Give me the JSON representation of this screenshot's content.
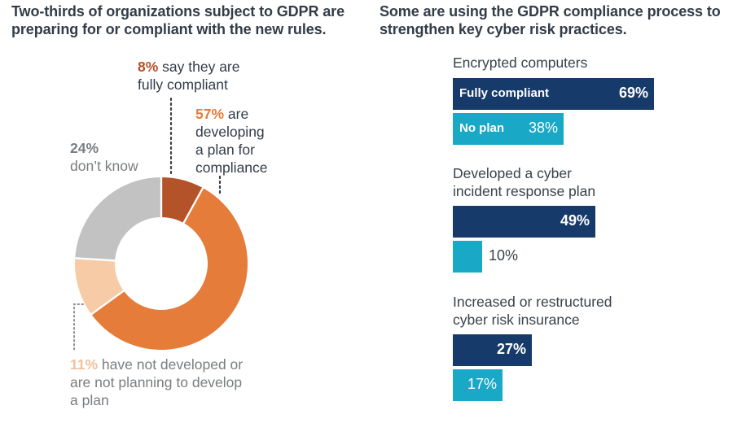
{
  "left_title": "Two-thirds of organizations subject to GDPR are preparing for or compliant with the new rules.",
  "right_title": "Some are using the GDPR compliance process to strengthen key cyber risk practices.",
  "annotations": {
    "compliant": {
      "pct": "8%",
      "text": " say they are",
      "text2": "fully compliant"
    },
    "developing": {
      "pct": "57%",
      "text": " are",
      "text2": "developing",
      "text3": "a plan for",
      "text4": "compliance"
    },
    "dontknow": {
      "pct": "24%",
      "text2": "don’t know"
    },
    "notdev": {
      "pct": "11%",
      "text": " have not developed or",
      "text2": "are not planning to develop",
      "text3": "a plan"
    }
  },
  "chart_data": [
    {
      "type": "pie",
      "title": "Two-thirds of organizations subject to GDPR are preparing for or compliant with the new rules.",
      "donut": true,
      "start": "top",
      "direction": "clockwise",
      "slices": [
        {
          "label": "Fully compliant",
          "value": 8,
          "color": "#b4532a"
        },
        {
          "label": "Developing a plan for compliance",
          "value": 57,
          "color": "#e57c3a"
        },
        {
          "label": "Have not developed or are not planning to develop a plan",
          "value": 11,
          "color": "#f6cba6"
        },
        {
          "label": "Don't know",
          "value": 24,
          "color": "#c2c2c2"
        }
      ]
    },
    {
      "type": "bar",
      "orientation": "horizontal",
      "title": "Some are using the GDPR compliance process to strengthen key cyber risk practices.",
      "xlim": [
        0,
        100
      ],
      "series_colors": {
        "Fully compliant": "#163a6a",
        "No plan": "#19a8c5"
      },
      "legend_inline": [
        "Fully compliant",
        "No plan"
      ],
      "groups": [
        {
          "label_lines": [
            "Encrypted computers"
          ],
          "series": [
            {
              "name": "Fully compliant",
              "value": 69,
              "display": "69%",
              "show_name": true
            },
            {
              "name": "No plan",
              "value": 38,
              "display": "38%",
              "show_name": true
            }
          ]
        },
        {
          "label_lines": [
            "Developed a cyber",
            "incident response plan"
          ],
          "series": [
            {
              "name": "Fully compliant",
              "value": 49,
              "display": "49%",
              "show_name": false
            },
            {
              "name": "No plan",
              "value": 10,
              "display": "10%",
              "show_name": false
            }
          ]
        },
        {
          "label_lines": [
            "Increased or restructured",
            "cyber risk insurance"
          ],
          "series": [
            {
              "name": "Fully compliant",
              "value": 27,
              "display": "27%",
              "show_name": false
            },
            {
              "name": "No plan",
              "value": 17,
              "display": "17%",
              "show_name": false
            }
          ]
        }
      ]
    }
  ]
}
